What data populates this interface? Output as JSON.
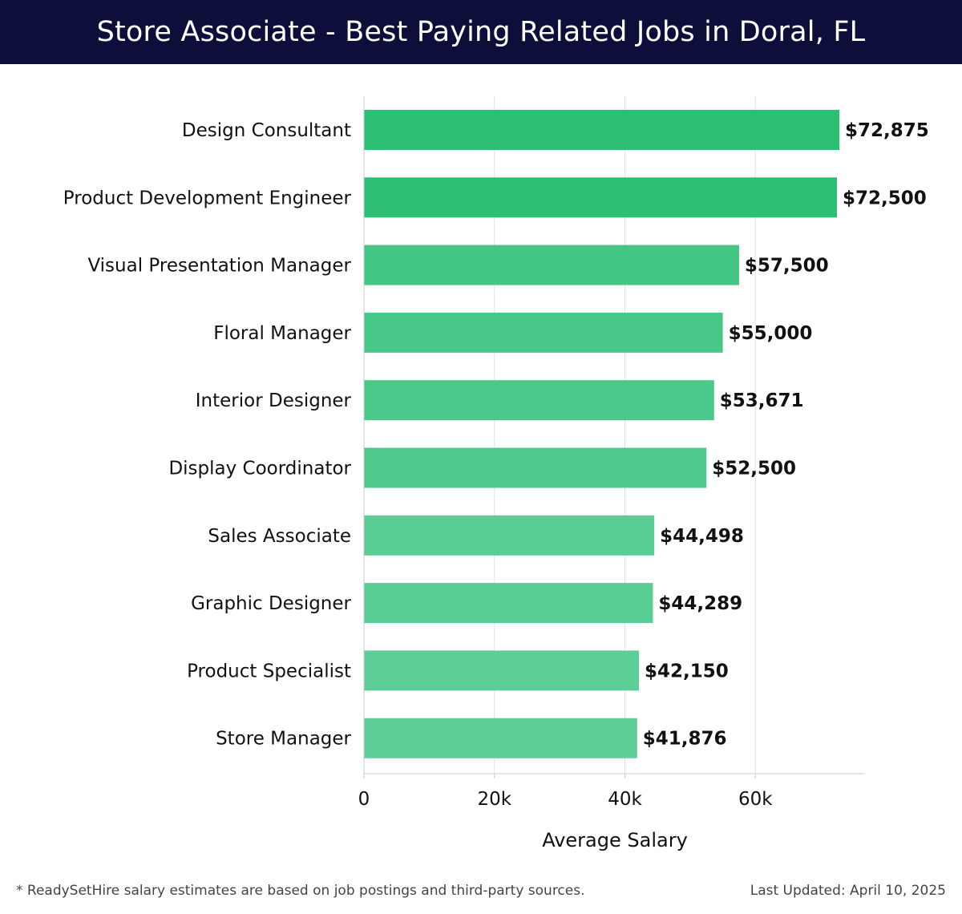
{
  "header": {
    "title": "Store Associate - Best Paying Related Jobs in Doral, FL"
  },
  "chart_data": {
    "type": "bar",
    "orientation": "horizontal",
    "categories": [
      "Design Consultant",
      "Product Development Engineer",
      "Visual Presentation Manager",
      "Floral Manager",
      "Interior Designer",
      "Display Coordinator",
      "Sales Associate",
      "Graphic Designer",
      "Product Specialist",
      "Store Manager"
    ],
    "values": [
      72875,
      72500,
      57500,
      55000,
      53671,
      52500,
      44498,
      44289,
      42150,
      41876
    ],
    "value_labels": [
      "$72,875",
      "$72,500",
      "$57,500",
      "$55,000",
      "$53,671",
      "$52,500",
      "$44,498",
      "$44,289",
      "$42,150",
      "$41,876"
    ],
    "xlabel": "Average Salary",
    "ylabel": "",
    "xlim": [
      0,
      76800
    ],
    "x_ticks": [
      0,
      20000,
      40000,
      60000
    ],
    "x_tick_labels": [
      "0",
      "20k",
      "40k",
      "60k"
    ],
    "grid": true,
    "legend": "none",
    "colors": {
      "bar_high": "#2bbf74",
      "bar_low": "#5dce97",
      "grid": "#e2e2e2",
      "axis": "#cccccc",
      "label_text": "#111111"
    }
  },
  "footer": {
    "note": "* ReadySetHire salary estimates are based on job postings and third-party sources.",
    "updated": "Last Updated: April 10, 2025"
  }
}
